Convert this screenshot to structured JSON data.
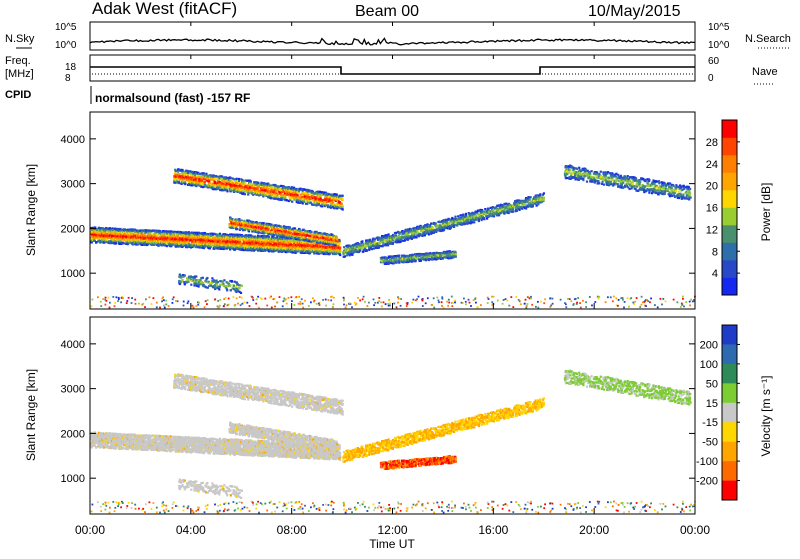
{
  "header": {
    "station": "Adak West (fitACF)",
    "beam": "Beam 00",
    "date": "10/May/2015"
  },
  "noise_panel": {
    "left_label": "N.Sky",
    "right_label": "N.Search",
    "left_ticks": [
      "10^5",
      "10^0"
    ],
    "right_ticks": [
      "10^5",
      "10^0"
    ]
  },
  "freq_panel": {
    "left_label_1": "Freq.",
    "left_label_2": "[MHz]",
    "right_label": "Nave",
    "left_ticks": [
      "18",
      "8"
    ],
    "right_ticks": [
      "60",
      "0"
    ]
  },
  "cpid": {
    "label": "CPID",
    "text": "normalsound (fast) -157 RF"
  },
  "x_axis": {
    "label": "Time UT",
    "ticks": [
      "00:00",
      "04:00",
      "08:00",
      "12:00",
      "16:00",
      "20:00",
      "00:00"
    ]
  },
  "chart_data": [
    {
      "type": "heatmap",
      "title": "",
      "xlabel": "Time UT",
      "ylabel": "Slant Range [km]",
      "x_ticks": [
        "00:00",
        "04:00",
        "08:00",
        "12:00",
        "16:00",
        "20:00",
        "00:00"
      ],
      "y_ticks": [
        1000,
        2000,
        3000,
        4000
      ],
      "ylim": [
        200,
        4600
      ],
      "colorbar": {
        "label": "Power [dB]",
        "ticks": [
          4,
          8,
          12,
          16,
          20,
          24,
          28
        ],
        "colors": [
          "#1428f0",
          "#2848c8",
          "#2d6eab",
          "#4a8f6e",
          "#9acd32",
          "#ffd700",
          "#ffa500",
          "#ff7f00",
          "#ff4500",
          "#ff0000"
        ]
      }
    },
    {
      "type": "heatmap",
      "title": "",
      "xlabel": "Time UT",
      "ylabel": "Slant Range [km]",
      "x_ticks": [
        "00:00",
        "04:00",
        "08:00",
        "12:00",
        "16:00",
        "20:00",
        "00:00"
      ],
      "y_ticks": [
        1000,
        2000,
        3000,
        4000
      ],
      "ylim": [
        200,
        4600
      ],
      "colorbar": {
        "label": "Velocity [m s^-1]",
        "ticks": [
          200,
          100,
          50,
          15,
          -15,
          -50,
          -100,
          -200
        ],
        "colors": [
          "#1e3cc8",
          "#2e6ab0",
          "#2e8b57",
          "#7ccd32",
          "#c8c8c8",
          "#ffd700",
          "#ffa500",
          "#ff6a00",
          "#ff0000"
        ]
      }
    }
  ]
}
